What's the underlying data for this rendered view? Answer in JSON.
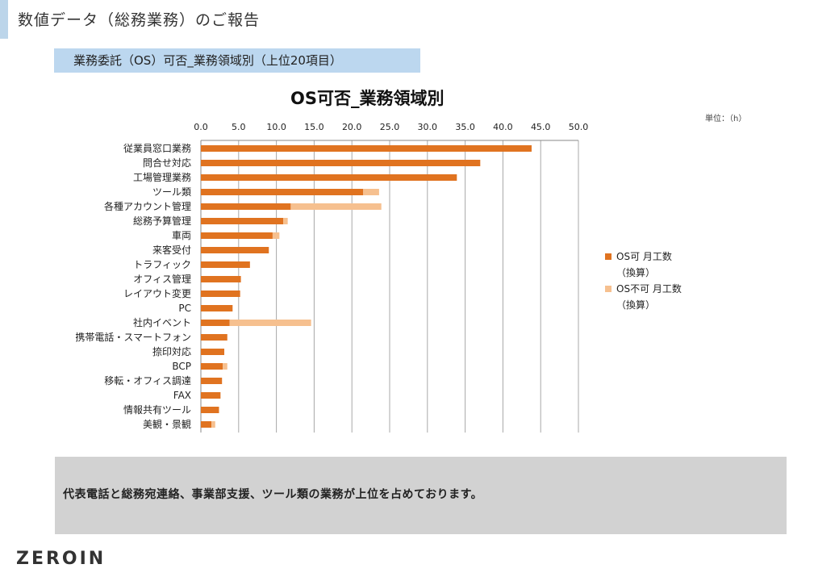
{
  "page": {
    "title": "数値データ（総務業務）のご報告",
    "section_header": "業務委託（OS）可否_業務領域別（上位20項目）",
    "summary": "代表電話と総務宛連絡、事業部支援、ツール類の業務が上位を占めております。",
    "logo": "ZEROIN"
  },
  "colors": {
    "accent": "#bcd5ea",
    "series_os_possible": "#e07320",
    "series_os_impossible": "#f6c08f",
    "gridline": "#a8a8a8"
  },
  "chart_data": {
    "type": "bar",
    "orientation": "horizontal",
    "stacked": true,
    "title": "OS可否_業務領域別",
    "unit": "単位：（h）",
    "xlim": [
      0,
      50
    ],
    "xticks": [
      "0.0",
      "5.0",
      "10.0",
      "15.0",
      "20.0",
      "25.0",
      "30.0",
      "35.0",
      "40.0",
      "45.0",
      "50.0"
    ],
    "x_axis_position": "top",
    "grid": true,
    "legend_position": "right",
    "categories": [
      "従業員窓口業務",
      "問合せ対応",
      "工場管理業務",
      "ツール類",
      "各種アカウント管理",
      "総務予算管理",
      "車両",
      "来客受付",
      "トラフィック",
      "オフィス管理",
      "レイアウト変更",
      "PC",
      "社内イベント",
      "携帯電話・スマートフォン",
      "捺印対応",
      "BCP",
      "移転・オフィス調達",
      "FAX",
      "情報共有ツール",
      "美観・景観"
    ],
    "series": [
      {
        "name": "OS可 月工数\n（換算）",
        "values": [
          43.8,
          37.0,
          33.9,
          21.5,
          11.9,
          10.9,
          9.5,
          9.0,
          6.5,
          5.3,
          5.2,
          4.2,
          3.8,
          3.5,
          3.1,
          2.9,
          2.8,
          2.6,
          2.4,
          1.4
        ]
      },
      {
        "name": "OS不可 月工数\n（換算）",
        "values": [
          0,
          0,
          0,
          2.1,
          12.0,
          0.6,
          0.9,
          0,
          0,
          0,
          0,
          0,
          10.8,
          0,
          0,
          0.6,
          0,
          0,
          0,
          0.5
        ]
      }
    ]
  }
}
